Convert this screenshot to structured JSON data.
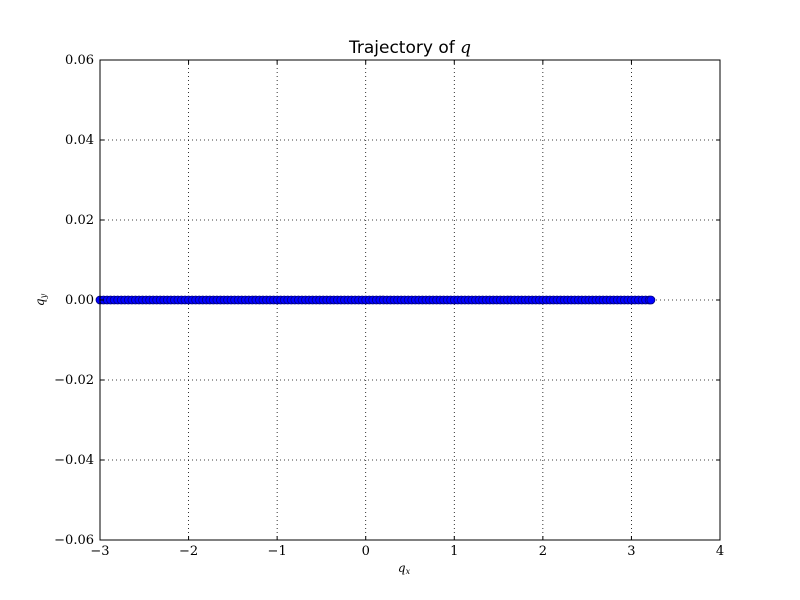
{
  "chart_data": {
    "type": "scatter",
    "title": "Trajectory of",
    "title_var": "q",
    "xlabel": "q",
    "xlabel_sub": "x",
    "ylabel": "q",
    "ylabel_sub": "y",
    "xlim": [
      -3,
      4
    ],
    "ylim": [
      -0.06,
      0.06
    ],
    "grid": true,
    "x_ticks": [
      -3,
      -2,
      -1,
      0,
      1,
      2,
      3,
      4
    ],
    "x_tick_labels": [
      "−3",
      "−2",
      "−1",
      "0",
      "1",
      "2",
      "3",
      "4"
    ],
    "y_ticks": [
      -0.06,
      -0.04,
      -0.02,
      0.0,
      0.02,
      0.04,
      0.06
    ],
    "y_tick_labels": [
      "−0.06",
      "−0.04",
      "−0.02",
      "0.00",
      "0.02",
      "0.04",
      "0.06"
    ],
    "marker_color": "#0000ff",
    "marker_edge_color": "#00007f",
    "series": [
      {
        "points": [
          [
            -3.0,
            0
          ],
          [
            -2.96,
            0
          ],
          [
            -2.92,
            0
          ],
          [
            -2.88,
            0
          ],
          [
            -2.84,
            0
          ],
          [
            -2.8,
            0
          ],
          [
            -2.76,
            0
          ],
          [
            -2.72,
            0
          ],
          [
            -2.68,
            0
          ],
          [
            -2.64,
            0
          ],
          [
            -2.6,
            0
          ],
          [
            -2.56,
            0
          ],
          [
            -2.52,
            0
          ],
          [
            -2.48,
            0
          ],
          [
            -2.44,
            0
          ],
          [
            -2.4,
            0
          ],
          [
            -2.36,
            0
          ],
          [
            -2.32,
            0
          ],
          [
            -2.28,
            0
          ],
          [
            -2.24,
            0
          ],
          [
            -2.2,
            0
          ],
          [
            -2.16,
            0
          ],
          [
            -2.12,
            0
          ],
          [
            -2.08,
            0
          ],
          [
            -2.04,
            0
          ],
          [
            -2.0,
            0
          ],
          [
            -1.96,
            0
          ],
          [
            -1.92,
            0
          ],
          [
            -1.88,
            0
          ],
          [
            -1.84,
            0
          ],
          [
            -1.8,
            0
          ],
          [
            -1.76,
            0
          ],
          [
            -1.72,
            0
          ],
          [
            -1.68,
            0
          ],
          [
            -1.64,
            0
          ],
          [
            -1.6,
            0
          ],
          [
            -1.56,
            0
          ],
          [
            -1.52,
            0
          ],
          [
            -1.48,
            0
          ],
          [
            -1.44,
            0
          ],
          [
            -1.4,
            0
          ],
          [
            -1.36,
            0
          ],
          [
            -1.32,
            0
          ],
          [
            -1.28,
            0
          ],
          [
            -1.24,
            0
          ],
          [
            -1.2,
            0
          ],
          [
            -1.16,
            0
          ],
          [
            -1.12,
            0
          ],
          [
            -1.08,
            0
          ],
          [
            -1.04,
            0
          ],
          [
            -1.0,
            0
          ],
          [
            -0.96,
            0
          ],
          [
            -0.92,
            0
          ],
          [
            -0.88,
            0
          ],
          [
            -0.84,
            0
          ],
          [
            -0.8,
            0
          ],
          [
            -0.76,
            0
          ],
          [
            -0.72,
            0
          ],
          [
            -0.68,
            0
          ],
          [
            -0.64,
            0
          ],
          [
            -0.6,
            0
          ],
          [
            -0.56,
            0
          ],
          [
            -0.52,
            0
          ],
          [
            -0.48,
            0
          ],
          [
            -0.44,
            0
          ],
          [
            -0.4,
            0
          ],
          [
            -0.36,
            0
          ],
          [
            -0.32,
            0
          ],
          [
            -0.28,
            0
          ],
          [
            -0.24,
            0
          ],
          [
            -0.2,
            0
          ],
          [
            -0.16,
            0
          ],
          [
            -0.12,
            0
          ],
          [
            -0.08,
            0
          ],
          [
            -0.04,
            0
          ],
          [
            0.0,
            0
          ],
          [
            0.04,
            0
          ],
          [
            0.08,
            0
          ],
          [
            0.12,
            0
          ],
          [
            0.16,
            0
          ],
          [
            0.2,
            0
          ],
          [
            0.24,
            0
          ],
          [
            0.28,
            0
          ],
          [
            0.32,
            0
          ],
          [
            0.36,
            0
          ],
          [
            0.4,
            0
          ],
          [
            0.44,
            0
          ],
          [
            0.48,
            0
          ],
          [
            0.52,
            0
          ],
          [
            0.56,
            0
          ],
          [
            0.6,
            0
          ],
          [
            0.64,
            0
          ],
          [
            0.68,
            0
          ],
          [
            0.72,
            0
          ],
          [
            0.76,
            0
          ],
          [
            0.8,
            0
          ],
          [
            0.84,
            0
          ],
          [
            0.88,
            0
          ],
          [
            0.92,
            0
          ],
          [
            0.96,
            0
          ],
          [
            1.0,
            0
          ],
          [
            1.04,
            0
          ],
          [
            1.08,
            0
          ],
          [
            1.12,
            0
          ],
          [
            1.16,
            0
          ],
          [
            1.2,
            0
          ],
          [
            1.24,
            0
          ],
          [
            1.28,
            0
          ],
          [
            1.32,
            0
          ],
          [
            1.36,
            0
          ],
          [
            1.4,
            0
          ],
          [
            1.44,
            0
          ],
          [
            1.48,
            0
          ],
          [
            1.52,
            0
          ],
          [
            1.56,
            0
          ],
          [
            1.6,
            0
          ],
          [
            1.64,
            0
          ],
          [
            1.68,
            0
          ],
          [
            1.72,
            0
          ],
          [
            1.76,
            0
          ],
          [
            1.8,
            0
          ],
          [
            1.84,
            0
          ],
          [
            1.88,
            0
          ],
          [
            1.92,
            0
          ],
          [
            1.96,
            0
          ],
          [
            2.0,
            0
          ],
          [
            2.04,
            0
          ],
          [
            2.08,
            0
          ],
          [
            2.12,
            0
          ],
          [
            2.16,
            0
          ],
          [
            2.2,
            0
          ],
          [
            2.24,
            0
          ],
          [
            2.28,
            0
          ],
          [
            2.32,
            0
          ],
          [
            2.36,
            0
          ],
          [
            2.4,
            0
          ],
          [
            2.44,
            0
          ],
          [
            2.48,
            0
          ],
          [
            2.52,
            0
          ],
          [
            2.56,
            0
          ],
          [
            2.6,
            0
          ],
          [
            2.64,
            0
          ],
          [
            2.68,
            0
          ],
          [
            2.72,
            0
          ],
          [
            2.76,
            0
          ],
          [
            2.8,
            0
          ],
          [
            2.84,
            0
          ],
          [
            2.88,
            0
          ],
          [
            2.92,
            0
          ],
          [
            2.96,
            0
          ],
          [
            3.0,
            0
          ],
          [
            3.04,
            0
          ],
          [
            3.08,
            0
          ],
          [
            3.12,
            0
          ],
          [
            3.16,
            0
          ],
          [
            3.2,
            0
          ],
          [
            3.22,
            0
          ]
        ]
      }
    ]
  }
}
